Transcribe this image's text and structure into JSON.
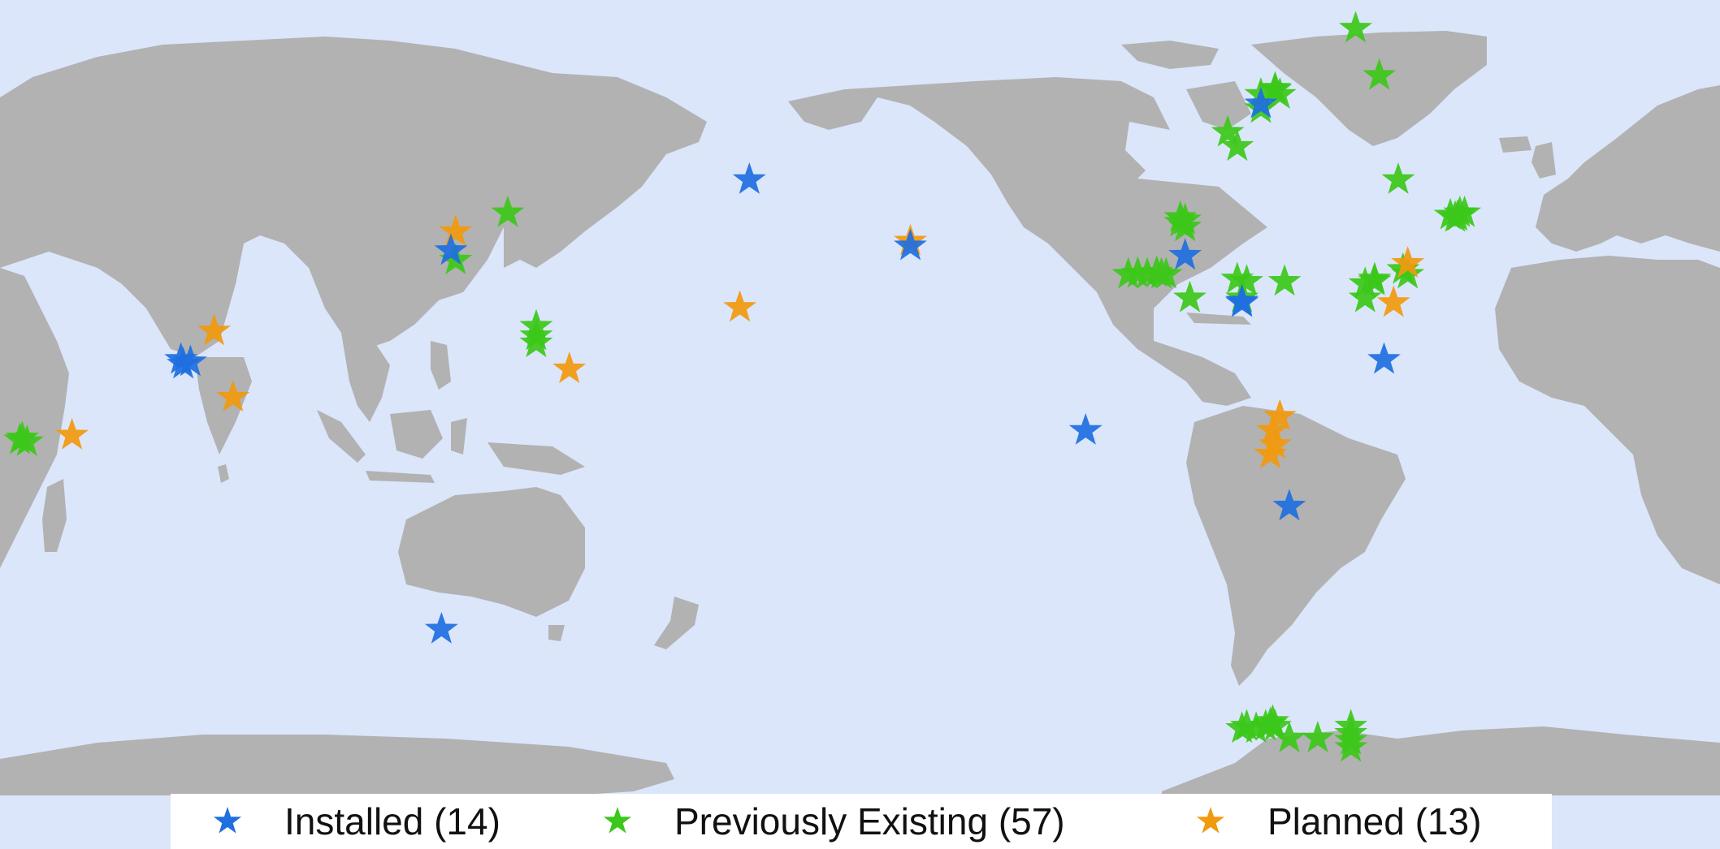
{
  "colors": {
    "ocean": "#dbe6fb",
    "land": "#b2b2b2",
    "installed": "#1f6fe0",
    "previously_existing": "#3cc81a",
    "planned": "#f29a0e"
  },
  "legend": {
    "installed": "Installed (14)",
    "previously_existing": "Previously Existing (57)",
    "planned": "Planned (13)"
  },
  "markers": {
    "installed": [
      {
        "lon": 84,
        "lat": 10
      },
      {
        "lon": 84.5,
        "lat": 9
      },
      {
        "lon": 86,
        "lat": 9.5
      },
      {
        "lon": 141,
        "lat": 33
      },
      {
        "lon": 139,
        "lat": -47
      },
      {
        "lon": -156,
        "lat": 48
      },
      {
        "lon": -122,
        "lat": 34
      },
      {
        "lon": -85,
        "lat": -5
      },
      {
        "lon": -64,
        "lat": 32
      },
      {
        "lon": -52,
        "lat": 22
      },
      {
        "lon": -22,
        "lat": 10
      },
      {
        "lon": -42,
        "lat": -21
      },
      {
        "lon": -48,
        "lat": 64
      },
      {
        "lon": -52,
        "lat": 22.3
      }
    ],
    "previously_existing": [
      {
        "lon": 50,
        "lat": -7
      },
      {
        "lon": 50.5,
        "lat": -6.6
      },
      {
        "lon": 51.5,
        "lat": -7.4
      },
      {
        "lon": 142,
        "lat": 31
      },
      {
        "lon": 153,
        "lat": 41
      },
      {
        "lon": 159,
        "lat": 17
      },
      {
        "lon": 159,
        "lat": 15
      },
      {
        "lon": 159,
        "lat": 13.5
      },
      {
        "lon": -65,
        "lat": 40
      },
      {
        "lon": -65,
        "lat": 39
      },
      {
        "lon": -64,
        "lat": 38
      },
      {
        "lon": -76,
        "lat": 28
      },
      {
        "lon": -74,
        "lat": 28.2
      },
      {
        "lon": -72,
        "lat": 28
      },
      {
        "lon": -69,
        "lat": 28
      },
      {
        "lon": -68,
        "lat": 28
      },
      {
        "lon": -53,
        "lat": 27
      },
      {
        "lon": -51,
        "lat": 26.5
      },
      {
        "lon": -43,
        "lat": 26.5
      },
      {
        "lon": -63,
        "lat": 23
      },
      {
        "lon": -52,
        "lat": 23
      },
      {
        "lon": -26,
        "lat": 26
      },
      {
        "lon": -24,
        "lat": 27
      },
      {
        "lon": -26,
        "lat": 23
      },
      {
        "lon": -18,
        "lat": 29
      },
      {
        "lon": -17,
        "lat": 28
      },
      {
        "lon": -55,
        "lat": 58
      },
      {
        "lon": -53,
        "lat": 55
      },
      {
        "lon": -48,
        "lat": 66
      },
      {
        "lon": -48,
        "lat": 63
      },
      {
        "lon": -45,
        "lat": 67
      },
      {
        "lon": -44,
        "lat": 66
      },
      {
        "lon": -28,
        "lat": 80
      },
      {
        "lon": -23,
        "lat": 70
      },
      {
        "lon": -19,
        "lat": 48
      },
      {
        "lon": -7,
        "lat": 40
      },
      {
        "lon": -6,
        "lat": 41
      },
      {
        "lon": -5,
        "lat": 41
      },
      {
        "lon": -8,
        "lat": 40.5
      },
      {
        "lon": -52,
        "lat": -68
      },
      {
        "lon": -51,
        "lat": -67.5
      },
      {
        "lon": -49,
        "lat": -68
      },
      {
        "lon": -47,
        "lat": -67.5
      },
      {
        "lon": -46,
        "lat": -67
      },
      {
        "lon": -45,
        "lat": -67.5
      },
      {
        "lon": -42,
        "lat": -70
      },
      {
        "lon": -36,
        "lat": -70
      },
      {
        "lon": -29,
        "lat": -67.5
      },
      {
        "lon": -29,
        "lat": -69
      },
      {
        "lon": -29,
        "lat": -70.5
      },
      {
        "lon": -29,
        "lat": -72
      },
      {
        "lon": -45.5,
        "lat": -66.5
      },
      {
        "lon": -45,
        "lat": 67.3
      },
      {
        "lon": -64,
        "lat": 39.5
      },
      {
        "lon": -70,
        "lat": 28.4
      },
      {
        "lon": -24,
        "lat": 26.6
      },
      {
        "lon": -6.5,
        "lat": 40.2
      }
    ],
    "planned": [
      {
        "lon": 61,
        "lat": -6
      },
      {
        "lon": 91,
        "lat": 16
      },
      {
        "lon": 95,
        "lat": 2
      },
      {
        "lon": 142,
        "lat": 37
      },
      {
        "lon": 166,
        "lat": 8
      },
      {
        "lon": -158,
        "lat": 21
      },
      {
        "lon": -122,
        "lat": 35
      },
      {
        "lon": -45,
        "lat": -8
      },
      {
        "lon": -45.5,
        "lat": -5
      },
      {
        "lon": -44,
        "lat": -2
      },
      {
        "lon": -17,
        "lat": 30.3
      },
      {
        "lon": -20,
        "lat": 22
      },
      {
        "lon": -46,
        "lat": -10
      }
    ]
  }
}
